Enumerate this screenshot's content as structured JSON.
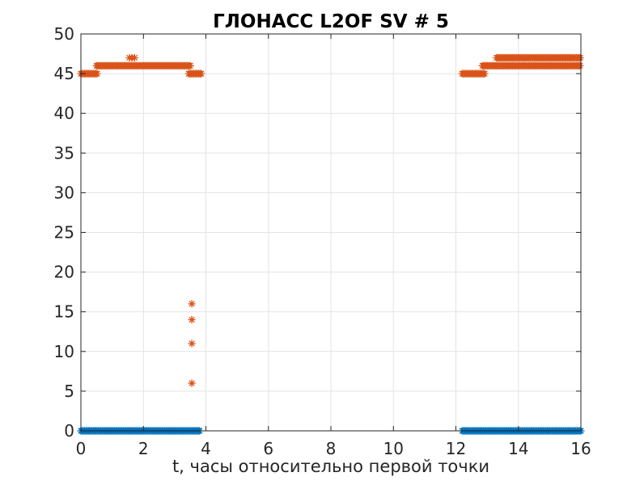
{
  "figure": {
    "background": "#FFFFFF"
  },
  "chart_data": {
    "type": "scatter",
    "title": "ГЛОНАСС L2OF SV # 5",
    "xlabel": "t, часы относительно первой точки",
    "ylabel": "",
    "xlim": [
      0,
      16
    ],
    "ylim": [
      0,
      50
    ],
    "xticks": [
      0,
      2,
      4,
      6,
      8,
      10,
      12,
      14,
      16
    ],
    "yticks": [
      0,
      5,
      10,
      15,
      20,
      25,
      30,
      35,
      40,
      45,
      50
    ],
    "grid": true,
    "marker": "asterisk",
    "colors": {
      "axis": "#262626",
      "grid": "#E3E3E3",
      "title": "#000000",
      "series_orange": "#D95319",
      "series_blue": "#0072BD"
    },
    "series": [
      {
        "name": "series-blue",
        "color": "#0072BD",
        "segments": [
          {
            "x_start": 0.0,
            "x_end": 3.8,
            "y": 0
          },
          {
            "x_start": 12.2,
            "x_end": 16.0,
            "y": 0
          }
        ],
        "points": []
      },
      {
        "name": "series-orange",
        "color": "#D95319",
        "segments": [
          {
            "x_start": 0.0,
            "x_end": 0.55,
            "y": 45
          },
          {
            "x_start": 0.5,
            "x_end": 3.5,
            "y": 46
          },
          {
            "x_start": 3.45,
            "x_end": 3.85,
            "y": 45
          },
          {
            "x_start": 12.2,
            "x_end": 12.95,
            "y": 45
          },
          {
            "x_start": 12.85,
            "x_end": 16.0,
            "y": 46
          },
          {
            "x_start": 13.3,
            "x_end": 16.0,
            "y": 47
          }
        ],
        "points": [
          [
            1.55,
            47
          ],
          [
            1.63,
            47
          ],
          [
            1.72,
            47
          ],
          [
            3.55,
            16
          ],
          [
            3.55,
            14
          ],
          [
            3.55,
            11
          ],
          [
            3.55,
            6
          ]
        ]
      }
    ]
  }
}
